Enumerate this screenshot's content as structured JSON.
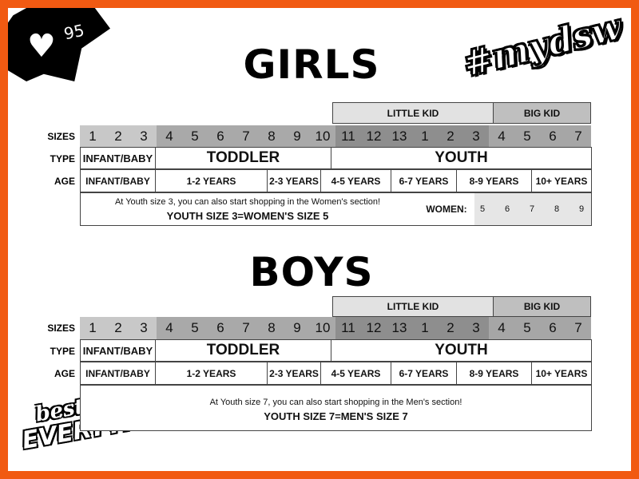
{
  "likes": {
    "icon": "heart-icon",
    "count": "95"
  },
  "hashtag": "#mydsw",
  "brand": {
    "line1": "best of",
    "line2": "EVERYTHING"
  },
  "row_labels": {
    "sizes": "SIZES",
    "type": "TYPE",
    "age": "AGE"
  },
  "colors": {
    "frame": "#f15a12",
    "little_kid": "#e2e2e2",
    "big_kid": "#bfbfbf",
    "women_values": "#e6e6e6",
    "size_groups": [
      "#c8c8c8",
      "#a9a9a9",
      "#8e8e8e",
      "#a6a6a6"
    ]
  },
  "sections": [
    {
      "title": "GIRLS",
      "headers": [
        "LITTLE KID",
        "BIG KID"
      ],
      "sizes": [
        "1",
        "2",
        "3",
        "4",
        "5",
        "6",
        "7",
        "8",
        "9",
        "10",
        "11",
        "12",
        "13",
        "1",
        "2",
        "3",
        "4",
        "5",
        "6",
        "7"
      ],
      "types": [
        "INFANT/BABY",
        "TODDLER",
        "YOUTH"
      ],
      "ages": [
        "INFANT/BABY",
        "1-2 YEARS",
        "2-3 YEARS",
        "4-5 YEARS",
        "6-7 YEARS",
        "8-9 YEARS",
        "10+ YEARS"
      ],
      "note": "At Youth size 3, you can also start shopping in the Women's section!",
      "equivalence": "YOUTH SIZE 3=WOMEN'S SIZE 5",
      "adult_label": "WOMEN:",
      "adult_sizes": [
        "5",
        "6",
        "7",
        "8",
        "9"
      ]
    },
    {
      "title": "BOYS",
      "headers": [
        "LITTLE KID",
        "BIG KID"
      ],
      "sizes": [
        "1",
        "2",
        "3",
        "4",
        "5",
        "6",
        "7",
        "8",
        "9",
        "10",
        "11",
        "12",
        "13",
        "1",
        "2",
        "3",
        "4",
        "5",
        "6",
        "7"
      ],
      "types": [
        "INFANT/BABY",
        "TODDLER",
        "YOUTH"
      ],
      "ages": [
        "INFANT/BABY",
        "1-2 YEARS",
        "2-3 YEARS",
        "4-5 YEARS",
        "6-7 YEARS",
        "8-9 YEARS",
        "10+ YEARS"
      ],
      "note": "At Youth size 7, you can also start shopping in the Men's section!",
      "equivalence": "YOUTH SIZE 7=MEN'S SIZE 7"
    }
  ]
}
